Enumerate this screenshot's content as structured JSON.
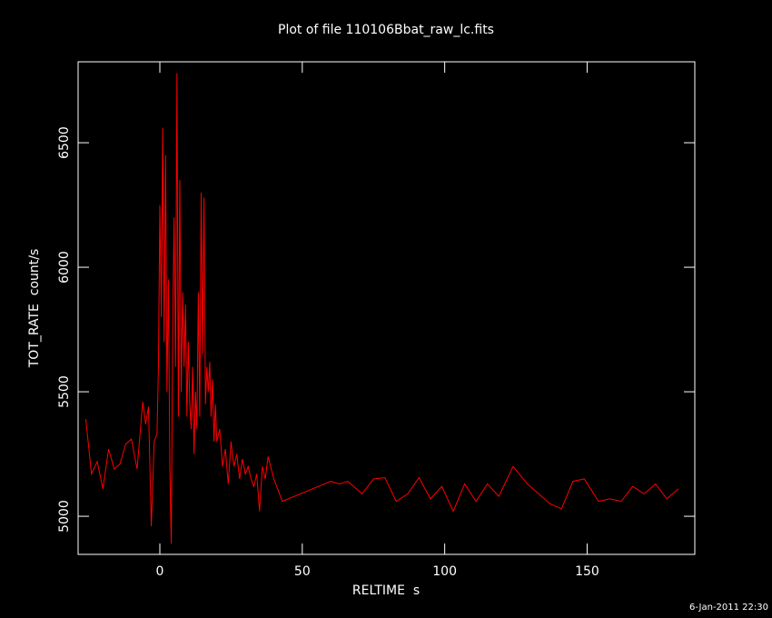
{
  "chart_data": {
    "type": "line",
    "title": "Plot of file 110106Bbat_raw_lc.fits",
    "xlabel": "RELTIME  s",
    "ylabel": "TOT_RATE  count/s",
    "timestamp": "6-Jan-2011 22:30",
    "color": "#ff0000",
    "axis_color": "#ffffff",
    "xlim": [
      -28.7,
      187.8
    ],
    "ylim": [
      4847,
      6825
    ],
    "xticks": [
      0,
      50,
      100,
      150
    ],
    "yticks": [
      5000,
      5500,
      6000,
      6500
    ],
    "x": [
      -26,
      -24,
      -22,
      -20,
      -18,
      -16,
      -14,
      -12,
      -10,
      -8,
      -6,
      -5,
      -4,
      -3,
      -2,
      -1,
      -0.5,
      0,
      0.5,
      1,
      1.5,
      2,
      2.5,
      3,
      3.5,
      4,
      4.5,
      5,
      5.5,
      6,
      6.5,
      7,
      7.5,
      8,
      8.5,
      9,
      9.5,
      10,
      10.5,
      11,
      11.5,
      12,
      12.5,
      13,
      13.5,
      14,
      14.5,
      15,
      15.5,
      16,
      16.5,
      17,
      17.5,
      18,
      18.5,
      19,
      19.5,
      20,
      21,
      22,
      23,
      24,
      25,
      26,
      27,
      28,
      29,
      30,
      31,
      32,
      33,
      34,
      35,
      36,
      37,
      38,
      40,
      43,
      60,
      63,
      66,
      71,
      75,
      79,
      83,
      87,
      91,
      95,
      99,
      103,
      107,
      111,
      115,
      119,
      124,
      129,
      133,
      137,
      141,
      145,
      149,
      154,
      158,
      162,
      166,
      170,
      174,
      178,
      182
    ],
    "values": [
      5390,
      5170,
      5220,
      5110,
      5270,
      5190,
      5210,
      5290,
      5310,
      5190,
      5460,
      5370,
      5440,
      4960,
      5300,
      5330,
      5600,
      6250,
      5800,
      6560,
      5700,
      6450,
      5500,
      5950,
      5200,
      4890,
      5750,
      6200,
      5600,
      6780,
      5400,
      6350,
      5500,
      5900,
      5600,
      5850,
      5400,
      5700,
      5450,
      5350,
      5600,
      5250,
      5500,
      5350,
      5900,
      5400,
      6300,
      5650,
      6280,
      5450,
      5600,
      5500,
      5620,
      5400,
      5550,
      5300,
      5450,
      5300,
      5350,
      5200,
      5270,
      5130,
      5300,
      5200,
      5250,
      5150,
      5230,
      5170,
      5200,
      5150,
      5120,
      5170,
      5020,
      5200,
      5150,
      5240,
      5150,
      5060,
      5140,
      5130,
      5140,
      5090,
      5150,
      5155,
      5060,
      5090,
      5155,
      5070,
      5120,
      5020,
      5130,
      5060,
      5130,
      5080,
      5200,
      5130,
      5090,
      5050,
      5030,
      5140,
      5150,
      5060,
      5070,
      5060,
      5120,
      5090,
      5130,
      5070,
      5110
    ]
  }
}
